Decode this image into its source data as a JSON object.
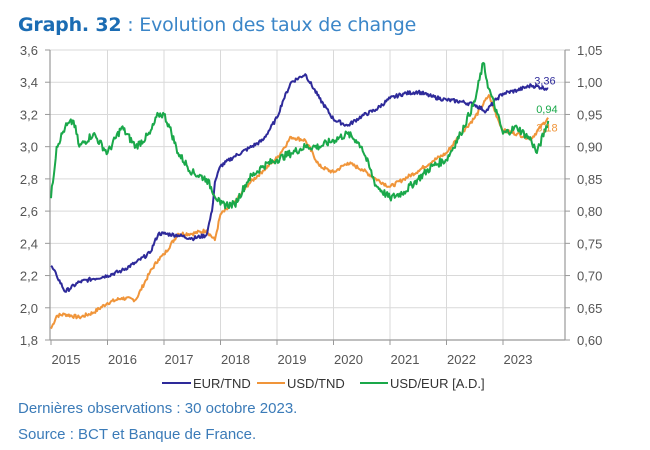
{
  "header": {
    "label": "Graph. 32",
    "separator": " : ",
    "title": "Evolution des taux de change"
  },
  "colors": {
    "title": "#1b6cb3",
    "eur_tnd": "#2e2a9a",
    "usd_tnd": "#f0953a",
    "usd_eur": "#1aa84a",
    "grid": "#d9d9d9",
    "note": "#3b7bb8"
  },
  "chart_data": {
    "type": "line",
    "title": "Evolution des taux de change",
    "xlabel": "",
    "ylabel_left": "",
    "ylabel_right": "",
    "x_ticks": [
      "2015",
      "2016",
      "2017",
      "2018",
      "2019",
      "2020",
      "2021",
      "2022",
      "2023"
    ],
    "xlim": [
      2015.0,
      2023.95
    ],
    "y_left": {
      "lim": [
        1.8,
        3.6
      ],
      "ticks": [
        "1,8",
        "2,0",
        "2,2",
        "2,4",
        "2,6",
        "2,8",
        "3,0",
        "3,2",
        "3,4",
        "3,6"
      ]
    },
    "y_right": {
      "lim": [
        0.6,
        1.05
      ],
      "ticks": [
        "0,60",
        "0,65",
        "0,70",
        "0,75",
        "0,80",
        "0,85",
        "0,90",
        "0,95",
        "1,00",
        "1,05"
      ]
    },
    "grid": true,
    "legend": "bottom",
    "series": [
      {
        "name": "EUR/TND",
        "axis": "left",
        "color": "#2e2a9a",
        "end_label": "3,36",
        "x": [
          2015.0,
          2015.1,
          2015.25,
          2015.5,
          2015.75,
          2016.0,
          2016.25,
          2016.5,
          2016.75,
          2016.9,
          2017.0,
          2017.25,
          2017.5,
          2017.75,
          2017.85,
          2017.9,
          2018.0,
          2018.25,
          2018.5,
          2018.75,
          2019.0,
          2019.1,
          2019.25,
          2019.5,
          2019.75,
          2020.0,
          2020.25,
          2020.5,
          2020.75,
          2021.0,
          2021.25,
          2021.5,
          2021.75,
          2022.0,
          2022.25,
          2022.5,
          2022.7,
          2022.9,
          2023.0,
          2023.25,
          2023.5,
          2023.8
        ],
        "y": [
          2.26,
          2.2,
          2.1,
          2.16,
          2.18,
          2.2,
          2.23,
          2.28,
          2.34,
          2.46,
          2.46,
          2.45,
          2.43,
          2.45,
          2.6,
          2.78,
          2.88,
          2.94,
          2.99,
          3.04,
          3.18,
          3.28,
          3.4,
          3.45,
          3.3,
          3.17,
          3.13,
          3.19,
          3.23,
          3.3,
          3.33,
          3.34,
          3.31,
          3.29,
          3.28,
          3.26,
          3.22,
          3.3,
          3.33,
          3.35,
          3.38,
          3.36
        ]
      },
      {
        "name": "USD/TND",
        "axis": "left",
        "color": "#f0953a",
        "end_label": "3,18",
        "x": [
          2015.0,
          2015.1,
          2015.25,
          2015.5,
          2015.75,
          2016.0,
          2016.25,
          2016.5,
          2016.75,
          2016.9,
          2017.0,
          2017.25,
          2017.5,
          2017.75,
          2017.9,
          2018.0,
          2018.25,
          2018.5,
          2018.75,
          2019.0,
          2019.25,
          2019.5,
          2019.75,
          2020.0,
          2020.25,
          2020.5,
          2020.75,
          2021.0,
          2021.25,
          2021.5,
          2021.75,
          2022.0,
          2022.25,
          2022.5,
          2022.75,
          2022.9,
          2023.0,
          2023.25,
          2023.5,
          2023.8
        ],
        "y": [
          1.87,
          1.95,
          1.96,
          1.94,
          1.97,
          2.03,
          2.06,
          2.05,
          2.22,
          2.3,
          2.33,
          2.46,
          2.46,
          2.48,
          2.42,
          2.58,
          2.65,
          2.77,
          2.85,
          2.93,
          3.06,
          3.04,
          2.88,
          2.84,
          2.9,
          2.86,
          2.8,
          2.75,
          2.8,
          2.85,
          2.91,
          2.96,
          3.08,
          3.18,
          3.32,
          3.18,
          3.1,
          3.08,
          3.05,
          3.18
        ]
      },
      {
        "name": "USD/EUR [A.D.]",
        "axis": "right",
        "color": "#1aa84a",
        "end_label": "0,94",
        "x": [
          2015.0,
          2015.1,
          2015.25,
          2015.4,
          2015.5,
          2015.75,
          2016.0,
          2016.25,
          2016.5,
          2016.75,
          2016.9,
          2017.0,
          2017.1,
          2017.25,
          2017.5,
          2017.75,
          2018.0,
          2018.25,
          2018.5,
          2018.75,
          2019.0,
          2019.25,
          2019.5,
          2019.75,
          2020.0,
          2020.25,
          2020.4,
          2020.5,
          2020.75,
          2021.0,
          2021.25,
          2021.5,
          2021.75,
          2022.0,
          2022.25,
          2022.5,
          2022.65,
          2022.75,
          2022.9,
          2023.0,
          2023.25,
          2023.5,
          2023.6,
          2023.8
        ],
        "y": [
          0.82,
          0.9,
          0.93,
          0.94,
          0.9,
          0.92,
          0.89,
          0.93,
          0.9,
          0.92,
          0.95,
          0.95,
          0.93,
          0.89,
          0.86,
          0.85,
          0.81,
          0.81,
          0.85,
          0.87,
          0.88,
          0.89,
          0.9,
          0.9,
          0.91,
          0.92,
          0.91,
          0.9,
          0.84,
          0.82,
          0.83,
          0.85,
          0.87,
          0.88,
          0.92,
          0.97,
          1.03,
          0.99,
          0.95,
          0.92,
          0.93,
          0.91,
          0.89,
          0.94
        ]
      }
    ]
  },
  "notes": {
    "last_obs": "Dernières observations : 30 octobre 2023.",
    "source": "Source : BCT et Banque de France."
  }
}
